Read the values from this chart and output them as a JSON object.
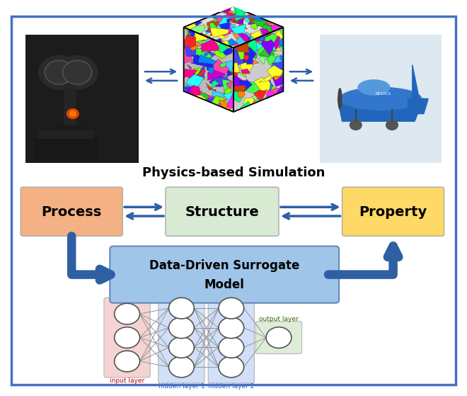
{
  "background_color": "#ffffff",
  "border_color": "#4472c4",
  "physics_text": "Physics-based Simulation",
  "process_text": "Process",
  "structure_text": "Structure",
  "property_text": "Property",
  "surrogate_text": "Data-Driven Surrogate\nModel",
  "process_box_color": "#f4b183",
  "structure_box_color": "#d9ead3",
  "property_box_color": "#ffd966",
  "surrogate_box_color": "#9fc5e8",
  "arrow_color": "#2e5fa3",
  "nn_input_bg": "#f4cccc",
  "nn_hidden_bg": "#c9daf8",
  "nn_output_bg": "#d9ead3",
  "nn_node_color": "#ffffff",
  "nn_node_edge": "#555555",
  "nn_line_color": "#888888",
  "input_layer_label": "input layer",
  "hidden1_layer_label": "hidden layer 1",
  "hidden2_layer_label": "hidden layer 2",
  "output_layer_label": "output layer",
  "label_color_input": "#cc0000",
  "label_color_hidden": "#3355bb",
  "label_color_output": "#336600",
  "figw": 6.4,
  "figh": 5.31
}
